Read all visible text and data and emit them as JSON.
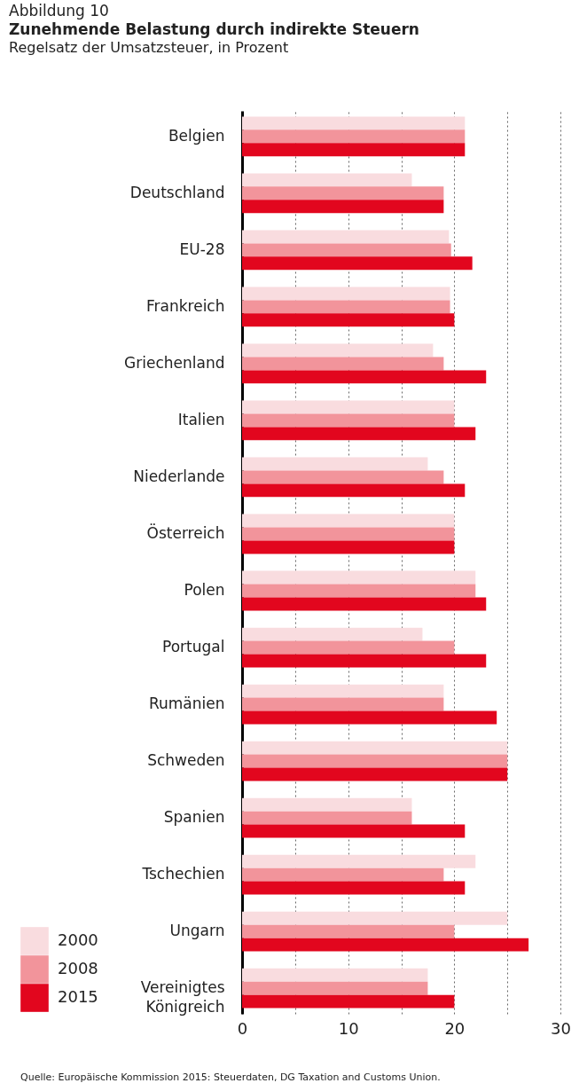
{
  "chart_data": {
    "type": "bar",
    "orientation": "horizontal",
    "title": "Zunehmende Belastung durch indirekte Steuern",
    "subtitle": "Regelsatz der Umsatzsteuer, in Prozent",
    "annotations": [
      "Abbildung 10",
      "Quelle: Europäische Kommission 2015: Steuerdaten, DG Taxation and Customs Union."
    ],
    "categories": [
      "Belgien",
      "Deutschland",
      "EU-28",
      "Frankreich",
      "Griechenland",
      "Italien",
      "Niederlande",
      "Österreich",
      "Polen",
      "Portugal",
      "Rumänien",
      "Schweden",
      "Spanien",
      "Tschechien",
      "Ungarn",
      "Vereinigtes\nKönigreich"
    ],
    "series": [
      {
        "name": "2000",
        "color": "#f9dcdf",
        "values": [
          21,
          16,
          19.5,
          19.6,
          18,
          20,
          17.5,
          20,
          22,
          17,
          19,
          25,
          16,
          22,
          25,
          17.5
        ]
      },
      {
        "name": "2008",
        "color": "#f2949b",
        "values": [
          21,
          19,
          19.7,
          19.6,
          19,
          20,
          19,
          20,
          22,
          20,
          19,
          25,
          16,
          19,
          20,
          17.5
        ]
      },
      {
        "name": "2015",
        "color": "#e2061e",
        "values": [
          21,
          19,
          21.7,
          20,
          23,
          22,
          21,
          20,
          23,
          23,
          24,
          25,
          21,
          21,
          27,
          20
        ]
      }
    ],
    "xlim": [
      0,
      30
    ],
    "xticks": [
      0,
      {
        "value": 5,
        "label": null
      },
      10,
      {
        "value": 15,
        "label": null
      },
      20,
      {
        "value": 25,
        "label": null
      },
      30
    ],
    "grid": "x",
    "legend": "bottom left"
  }
}
